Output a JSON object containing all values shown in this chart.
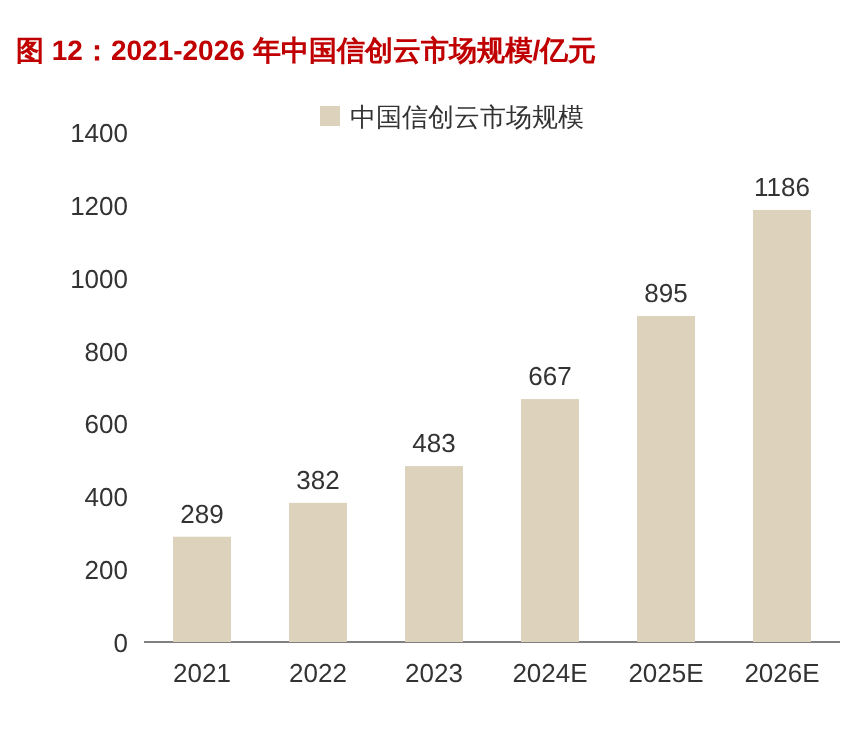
{
  "chart_data": {
    "type": "bar",
    "title": "图 12：2021-2026 年中国信创云市场规模/亿元",
    "categories": [
      "2021",
      "2022",
      "2023",
      "2024E",
      "2025E",
      "2026E"
    ],
    "series": [
      {
        "name": "中国信创云市场规模",
        "color": "#ddd3bd",
        "values": [
          289,
          382,
          483,
          667,
          895,
          1186
        ]
      }
    ],
    "ylim": [
      0,
      1400
    ],
    "yticks": [
      0,
      200,
      400,
      600,
      800,
      1000,
      1200,
      1400
    ],
    "data_labels": true,
    "legend": "top",
    "grid": false
  }
}
